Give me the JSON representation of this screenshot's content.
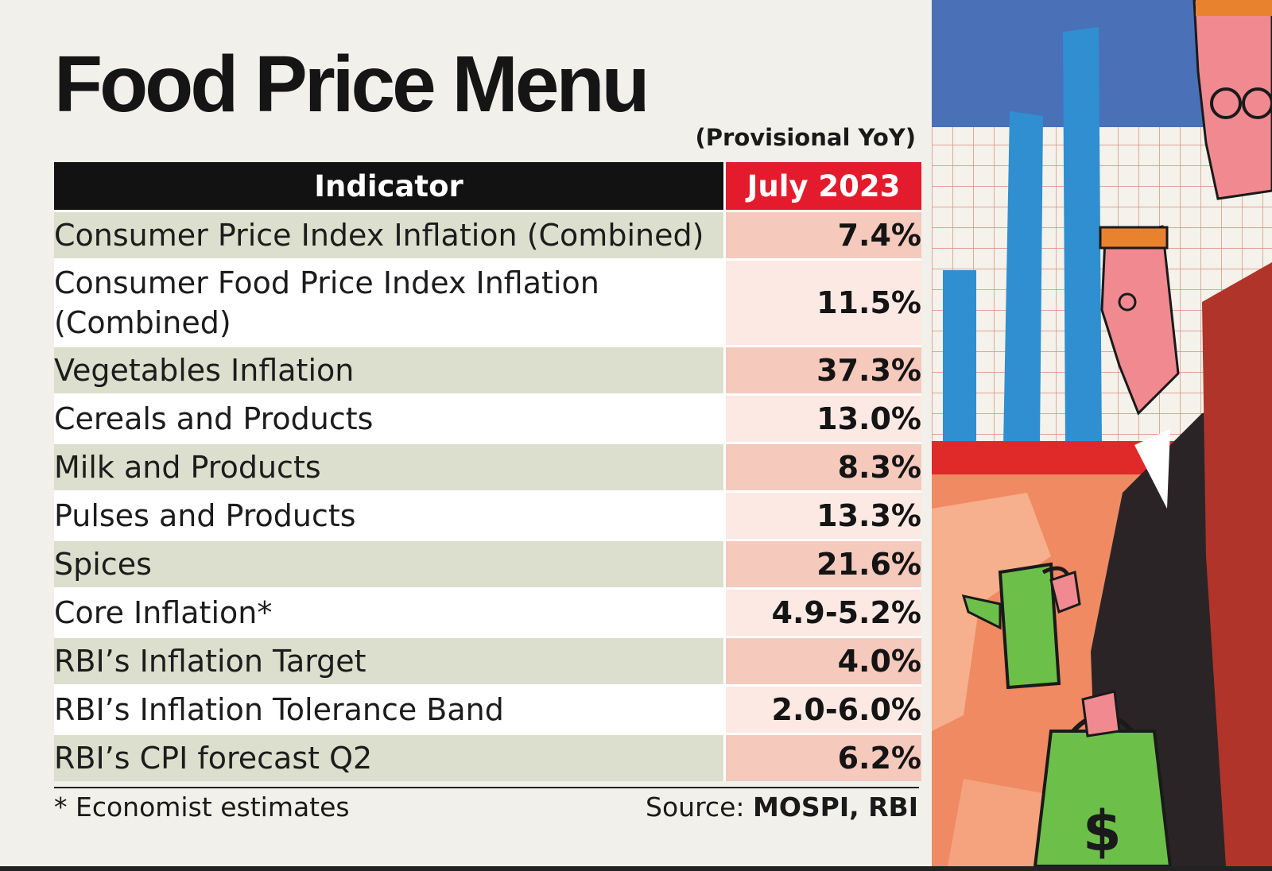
{
  "title": "Food Price Menu",
  "subtitle": "(Provisional YoY)",
  "table": {
    "headers": [
      "Indicator",
      "July 2023"
    ],
    "rows": [
      {
        "indicator": "Consumer Price Index Inflation (Combined)",
        "value": "7.4%"
      },
      {
        "indicator": "Consumer Food Price Index Inflation (Combined)",
        "value": "11.5%"
      },
      {
        "indicator": "Vegetables Inflation",
        "value": "37.3%"
      },
      {
        "indicator": "Cereals and Products",
        "value": "13.0%"
      },
      {
        "indicator": "Milk and Products",
        "value": "8.3%"
      },
      {
        "indicator": "Pulses and Products",
        "value": "13.3%"
      },
      {
        "indicator": "Spices",
        "value": "21.6%"
      },
      {
        "indicator": "Core Inflation*",
        "value": "4.9-5.2%"
      },
      {
        "indicator": "RBI’s Inflation Target",
        "value": "4.0%"
      },
      {
        "indicator": "RBI’s Inflation Tolerance Band",
        "value": "2.0-6.0%"
      },
      {
        "indicator": "RBI’s CPI forecast Q2",
        "value": "6.2%"
      }
    ]
  },
  "footnote": "* Economist estimates",
  "source": {
    "label": "Source:",
    "value": "MOSPI, RBI"
  },
  "chart_data": {
    "type": "table",
    "title": "Food Price Menu",
    "subtitle": "(Provisional YoY)",
    "columns": [
      "Indicator",
      "July 2023"
    ],
    "rows": [
      [
        "Consumer Price Index Inflation (Combined)",
        "7.4%"
      ],
      [
        "Consumer Food Price Index Inflation (Combined)",
        "11.5%"
      ],
      [
        "Vegetables Inflation",
        "37.3%"
      ],
      [
        "Cereals and Products",
        "13.0%"
      ],
      [
        "Milk and Products",
        "8.3%"
      ],
      [
        "Pulses and Products",
        "13.3%"
      ],
      [
        "Spices",
        "21.6%"
      ],
      [
        "Core Inflation*",
        "4.9-5.2%"
      ],
      [
        "RBI’s Inflation Target",
        "4.0%"
      ],
      [
        "RBI’s Inflation Tolerance Band",
        "2.0-6.0%"
      ],
      [
        "RBI’s CPI forecast Q2",
        "6.2%"
      ]
    ]
  },
  "colors": {
    "header_indicator": "#121212",
    "header_value": "#e41b2c",
    "row_indicator_shaded": "#dcdfcd",
    "row_value_shaded": "#f6c9bd",
    "row_value_light": "#fce9e3"
  },
  "illustration": {
    "icons": [
      "bar-chart",
      "grid-paper",
      "watering-can",
      "money-bag",
      "businessmen"
    ]
  }
}
